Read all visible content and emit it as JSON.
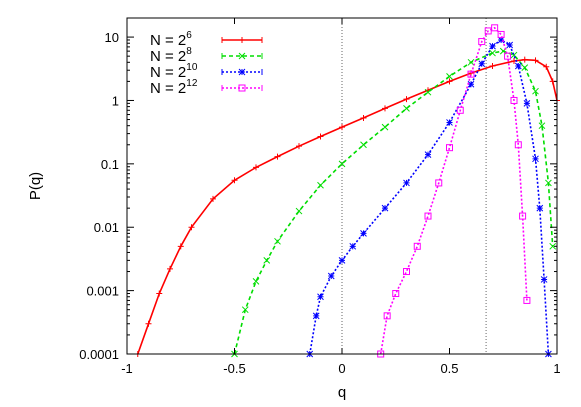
{
  "chart_data": {
    "type": "line",
    "xlabel": "q",
    "ylabel": "P(q)",
    "xlim": [
      -1,
      1
    ],
    "ylim": [
      0.0001,
      20
    ],
    "yscale": "log",
    "grid": false,
    "legend_position": "top-left",
    "x_ticks": [
      {
        "value": -1,
        "label": "-1"
      },
      {
        "value": -0.5,
        "label": "-0.5"
      },
      {
        "value": 0,
        "label": "0"
      },
      {
        "value": 0.5,
        "label": "0.5"
      },
      {
        "value": 1,
        "label": "1"
      }
    ],
    "y_ticks": [
      {
        "value": 0.0001,
        "label": "0.0001"
      },
      {
        "value": 0.001,
        "label": "0.001"
      },
      {
        "value": 0.01,
        "label": "0.01"
      },
      {
        "value": 0.1,
        "label": "0.1"
      },
      {
        "value": 1,
        "label": "1"
      },
      {
        "value": 10,
        "label": "10"
      }
    ],
    "reference_lines": [
      {
        "orientation": "vertical",
        "x": 0
      },
      {
        "orientation": "vertical",
        "x": 0.67
      }
    ],
    "series": [
      {
        "name": "N = 2^6",
        "name_base": "N = 2",
        "name_exp": "6",
        "color": "#ff0000",
        "marker": "plus",
        "line": "solid",
        "x": [
          -0.95,
          -0.9,
          -0.85,
          -0.8,
          -0.75,
          -0.7,
          -0.6,
          -0.5,
          -0.4,
          -0.3,
          -0.2,
          -0.1,
          0.0,
          0.1,
          0.2,
          0.3,
          0.4,
          0.5,
          0.6,
          0.7,
          0.8,
          0.85,
          0.9,
          0.95,
          0.98,
          1.0
        ],
        "y": [
          0.0001,
          0.0003,
          0.0009,
          0.0022,
          0.005,
          0.01,
          0.028,
          0.055,
          0.088,
          0.13,
          0.19,
          0.27,
          0.38,
          0.53,
          0.75,
          1.05,
          1.45,
          2.0,
          2.7,
          3.5,
          4.2,
          4.4,
          4.3,
          3.4,
          2.0,
          1.0
        ]
      },
      {
        "name": "N = 2^8",
        "name_base": "N = 2",
        "name_exp": "8",
        "color": "#00dd00",
        "marker": "x",
        "line": "dashed",
        "x": [
          -0.5,
          -0.45,
          -0.4,
          -0.35,
          -0.3,
          -0.2,
          -0.1,
          0.0,
          0.1,
          0.2,
          0.3,
          0.4,
          0.5,
          0.6,
          0.7,
          0.75,
          0.8,
          0.85,
          0.9,
          0.93,
          0.96,
          0.98
        ],
        "y": [
          0.0001,
          0.0005,
          0.0014,
          0.003,
          0.006,
          0.018,
          0.046,
          0.1,
          0.2,
          0.38,
          0.75,
          1.35,
          2.4,
          4.0,
          5.6,
          6.0,
          5.2,
          3.3,
          1.4,
          0.4,
          0.05,
          0.005
        ]
      },
      {
        "name": "N = 2^10",
        "name_base": "N = 2",
        "name_exp": "10",
        "color": "#0000ff",
        "marker": "star",
        "line": "dotted",
        "x": [
          -0.15,
          -0.12,
          -0.1,
          -0.05,
          0.0,
          0.05,
          0.1,
          0.2,
          0.3,
          0.4,
          0.5,
          0.6,
          0.65,
          0.7,
          0.74,
          0.78,
          0.82,
          0.86,
          0.9,
          0.92,
          0.94,
          0.96
        ],
        "y": [
          0.0001,
          0.0004,
          0.0008,
          0.0017,
          0.003,
          0.005,
          0.008,
          0.02,
          0.05,
          0.14,
          0.45,
          1.8,
          3.8,
          7.2,
          9.0,
          7.5,
          3.5,
          0.9,
          0.12,
          0.02,
          0.0015,
          0.0001
        ]
      },
      {
        "name": "N = 2^12",
        "name_base": "N = 2",
        "name_exp": "12",
        "color": "#ff00ff",
        "marker": "square",
        "line": "dotted",
        "x": [
          0.18,
          0.21,
          0.25,
          0.3,
          0.35,
          0.4,
          0.45,
          0.5,
          0.55,
          0.6,
          0.65,
          0.68,
          0.71,
          0.74,
          0.77,
          0.8,
          0.82,
          0.84,
          0.86
        ],
        "y": [
          0.0001,
          0.0004,
          0.0009,
          0.002,
          0.005,
          0.015,
          0.05,
          0.18,
          0.7,
          2.6,
          8.5,
          12.5,
          14.0,
          11.0,
          5.0,
          1.0,
          0.2,
          0.015,
          0.0007
        ]
      }
    ]
  }
}
